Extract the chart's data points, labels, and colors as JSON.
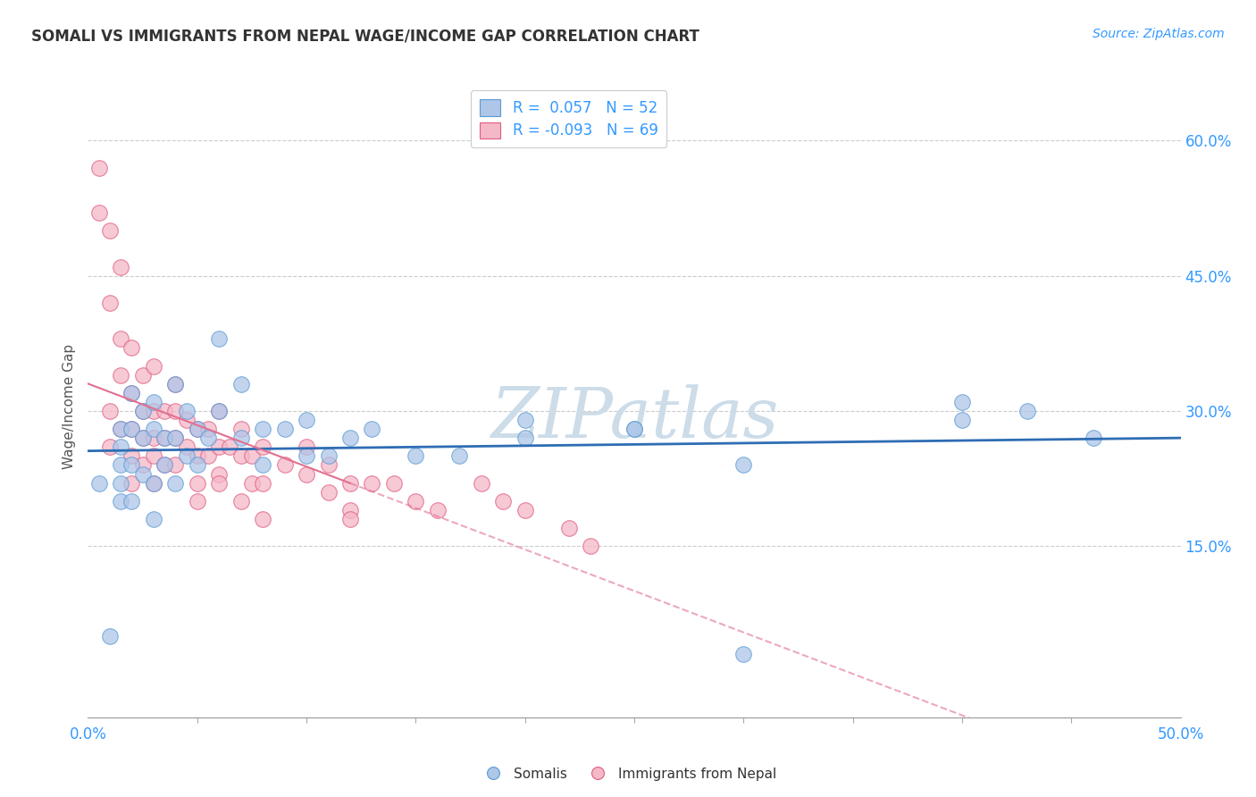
{
  "title": "SOMALI VS IMMIGRANTS FROM NEPAL WAGE/INCOME GAP CORRELATION CHART",
  "source": "Source: ZipAtlas.com",
  "ylabel": "Wage/Income Gap",
  "xlim": [
    0.0,
    0.5
  ],
  "ylim": [
    -0.04,
    0.65
  ],
  "legend_r1": "R =  0.057   N = 52",
  "legend_r2": "R = -0.093   N = 69",
  "somali_color": "#aec6e8",
  "somali_edge": "#5b9bd5",
  "nepal_color": "#f4b8c8",
  "nepal_edge": "#e05c80",
  "somali_line_color": "#2e6db4",
  "nepal_line_color": "#e07090",
  "watermark_color": "#ccdce8",
  "background": "#ffffff",
  "somali_x": [
    0.005,
    0.01,
    0.015,
    0.015,
    0.015,
    0.015,
    0.015,
    0.02,
    0.02,
    0.02,
    0.02,
    0.025,
    0.025,
    0.025,
    0.03,
    0.03,
    0.03,
    0.03,
    0.035,
    0.035,
    0.04,
    0.04,
    0.04,
    0.045,
    0.045,
    0.05,
    0.05,
    0.055,
    0.06,
    0.06,
    0.07,
    0.07,
    0.08,
    0.08,
    0.09,
    0.1,
    0.1,
    0.11,
    0.12,
    0.13,
    0.15,
    0.17,
    0.2,
    0.25,
    0.3,
    0.4,
    0.4,
    0.43,
    0.46,
    0.2,
    0.25,
    0.3
  ],
  "somali_y": [
    0.22,
    0.05,
    0.28,
    0.26,
    0.24,
    0.22,
    0.2,
    0.32,
    0.28,
    0.24,
    0.2,
    0.3,
    0.27,
    0.23,
    0.31,
    0.28,
    0.22,
    0.18,
    0.27,
    0.24,
    0.33,
    0.27,
    0.22,
    0.3,
    0.25,
    0.28,
    0.24,
    0.27,
    0.38,
    0.3,
    0.33,
    0.27,
    0.28,
    0.24,
    0.28,
    0.29,
    0.25,
    0.25,
    0.27,
    0.28,
    0.25,
    0.25,
    0.29,
    0.28,
    0.03,
    0.31,
    0.29,
    0.3,
    0.27,
    0.27,
    0.28,
    0.24
  ],
  "nepal_x": [
    0.005,
    0.005,
    0.01,
    0.01,
    0.01,
    0.01,
    0.015,
    0.015,
    0.015,
    0.015,
    0.02,
    0.02,
    0.02,
    0.02,
    0.02,
    0.025,
    0.025,
    0.025,
    0.025,
    0.03,
    0.03,
    0.03,
    0.03,
    0.03,
    0.035,
    0.035,
    0.035,
    0.04,
    0.04,
    0.04,
    0.04,
    0.045,
    0.045,
    0.05,
    0.05,
    0.05,
    0.055,
    0.055,
    0.06,
    0.06,
    0.06,
    0.065,
    0.07,
    0.07,
    0.075,
    0.075,
    0.08,
    0.08,
    0.09,
    0.1,
    0.1,
    0.11,
    0.12,
    0.12,
    0.13,
    0.14,
    0.15,
    0.16,
    0.18,
    0.19,
    0.2,
    0.22,
    0.23,
    0.11,
    0.12,
    0.07,
    0.08,
    0.06,
    0.05
  ],
  "nepal_y": [
    0.57,
    0.52,
    0.5,
    0.42,
    0.3,
    0.26,
    0.46,
    0.38,
    0.34,
    0.28,
    0.37,
    0.32,
    0.28,
    0.25,
    0.22,
    0.34,
    0.3,
    0.27,
    0.24,
    0.35,
    0.3,
    0.27,
    0.25,
    0.22,
    0.3,
    0.27,
    0.24,
    0.33,
    0.3,
    0.27,
    0.24,
    0.29,
    0.26,
    0.28,
    0.25,
    0.22,
    0.28,
    0.25,
    0.3,
    0.26,
    0.23,
    0.26,
    0.28,
    0.25,
    0.25,
    0.22,
    0.26,
    0.22,
    0.24,
    0.26,
    0.23,
    0.24,
    0.22,
    0.19,
    0.22,
    0.22,
    0.2,
    0.19,
    0.22,
    0.2,
    0.19,
    0.17,
    0.15,
    0.21,
    0.18,
    0.2,
    0.18,
    0.22,
    0.2
  ]
}
